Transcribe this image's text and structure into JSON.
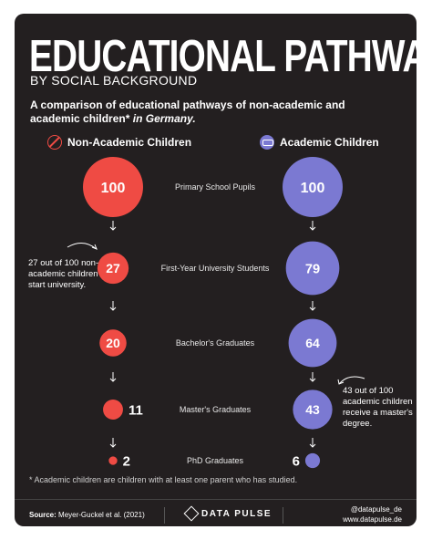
{
  "title": "EDUCATIONAL PATHWAYS",
  "subtitle": "BY SOCIAL BACKGROUND",
  "description": {
    "text": "A comparison of educational pathways of non-academic and academic children*",
    "emphasis": "in Germany."
  },
  "colors": {
    "background": "#231f20",
    "non_academic": "#ef4b44",
    "academic": "#7b79d2"
  },
  "groups": {
    "non_academic": {
      "label": "Non-Academic Children",
      "icon": "no-education-icon"
    },
    "academic": {
      "label": "Academic Children",
      "icon": "graduation-cap-icon"
    }
  },
  "chart_data": {
    "type": "bubble",
    "categories": [
      "Primary School Pupils",
      "First-Year University Students",
      "Bachelor's Graduates",
      "Master's Graduates",
      "PhD Graduates"
    ],
    "series": [
      {
        "name": "Non-Academic Children",
        "values": [
          100,
          27,
          20,
          11,
          2
        ]
      },
      {
        "name": "Academic Children",
        "values": [
          100,
          79,
          64,
          43,
          6
        ]
      }
    ]
  },
  "notes": {
    "non_academic": "27 out of 100 non-academic children start university.",
    "academic": "43 out of 100 academic children receive a master's degree."
  },
  "footnote": "* Academic children are children with at least one parent who has studied.",
  "footer": {
    "source_label": "Source:",
    "source_text": "Meyer-Guckel et al. (2021)",
    "brand": "DATA PULSE",
    "handle": "@datapulse_de",
    "website": "www.datapulse.de"
  }
}
